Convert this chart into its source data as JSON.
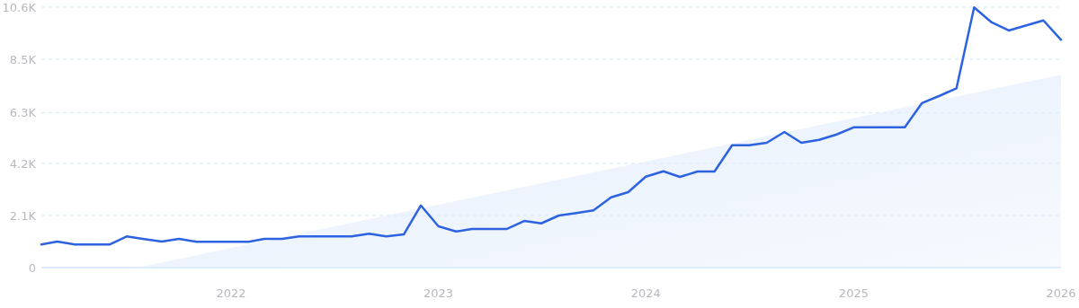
{
  "chart_data": {
    "type": "line",
    "x": [
      "2021-02",
      "2021-03",
      "2021-04",
      "2021-05",
      "2021-06",
      "2021-07",
      "2021-08",
      "2021-09",
      "2021-10",
      "2021-11",
      "2021-12",
      "2022-01",
      "2022-02",
      "2022-03",
      "2022-04",
      "2022-05",
      "2022-06",
      "2022-07",
      "2022-08",
      "2022-09",
      "2022-10",
      "2022-11",
      "2022-12",
      "2023-01",
      "2023-02",
      "2023-03",
      "2023-04",
      "2023-05",
      "2023-06",
      "2023-07",
      "2023-08",
      "2023-09",
      "2023-10",
      "2023-11",
      "2023-12",
      "2024-01",
      "2024-02",
      "2024-03",
      "2024-04",
      "2024-05",
      "2024-06",
      "2024-07",
      "2024-08",
      "2024-09",
      "2024-10",
      "2024-11",
      "2024-12",
      "2025-01",
      "2025-02",
      "2025-03",
      "2025-04",
      "2025-05",
      "2025-06",
      "2025-07",
      "2025-08",
      "2025-09",
      "2025-10",
      "2025-11",
      "2025-12",
      "2026-01"
    ],
    "series": [
      {
        "type": "area",
        "color": "#e3eefc",
        "x": [
          "2021-07-20",
          "2026-01"
        ],
        "values": [
          0,
          7850
        ]
      },
      {
        "color": "#2d62e0",
        "values": [
          940,
          1060,
          940,
          940,
          940,
          1270,
          1160,
          1060,
          1170,
          1050,
          1050,
          1050,
          1050,
          1170,
          1170,
          1270,
          1270,
          1270,
          1270,
          1380,
          1270,
          1350,
          2530,
          1680,
          1470,
          1570,
          1570,
          1570,
          1900,
          1800,
          2120,
          2220,
          2330,
          2860,
          3070,
          3700,
          3920,
          3690,
          3910,
          3910,
          4980,
          4980,
          5080,
          5520,
          5080,
          5200,
          5410,
          5710,
          5710,
          5710,
          5710,
          6690,
          6990,
          7300,
          10590,
          9980,
          9650,
          9860,
          10060,
          9270
        ]
      }
    ],
    "xlim": [
      "2021-02",
      "2026-01"
    ],
    "xticks": [
      {
        "value": "2022-01",
        "label": "2022"
      },
      {
        "value": "2023-01",
        "label": "2023"
      },
      {
        "value": "2024-01",
        "label": "2024"
      },
      {
        "value": "2025-01",
        "label": "2025"
      },
      {
        "value": "2026-01",
        "label": "2026"
      }
    ],
    "ylim": [
      0,
      10600
    ],
    "yticks": [
      0,
      {
        "value": 2120,
        "label": "2.1K"
      },
      {
        "value": 4240,
        "label": "4.2K"
      },
      {
        "value": 6300,
        "label": "6.3K"
      },
      {
        "value": 8480,
        "label": "8.5K"
      },
      {
        "value": 10600,
        "label": "10.6K"
      }
    ],
    "grid": "y",
    "marker": "none",
    "line_style": "solid"
  }
}
